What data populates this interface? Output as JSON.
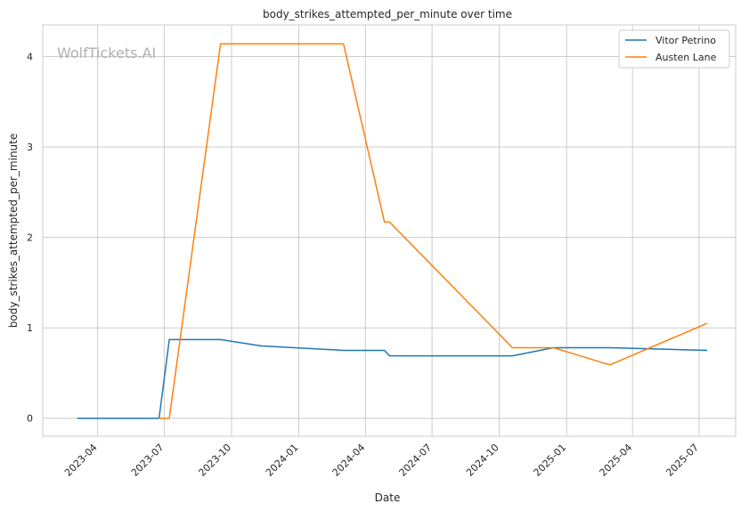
{
  "chart_data": {
    "type": "line",
    "title": "body_strikes_attempted_per_minute over time",
    "xlabel": "Date",
    "ylabel": "body_strikes_attempted_per_minute",
    "watermark": "WolfTickets.AI",
    "xlim": [
      "2023-01-16",
      "2025-08-20"
    ],
    "ylim": [
      -0.2,
      4.35
    ],
    "x_ticks": [
      "2023-04",
      "2023-07",
      "2023-10",
      "2024-01",
      "2024-04",
      "2024-07",
      "2024-10",
      "2025-01",
      "2025-04",
      "2025-07"
    ],
    "y_ticks": [
      0,
      1,
      2,
      3,
      4
    ],
    "grid": true,
    "legend_position": "top-right",
    "series": [
      {
        "name": "Vitor Petrino",
        "color": "#1f77b4",
        "points": [
          {
            "x": "2023-03-04",
            "y": 0.0
          },
          {
            "x": "2023-06-24",
            "y": 0.0
          },
          {
            "x": "2023-07-08",
            "y": 0.87
          },
          {
            "x": "2023-09-16",
            "y": 0.87
          },
          {
            "x": "2023-11-11",
            "y": 0.8
          },
          {
            "x": "2024-03-02",
            "y": 0.75
          },
          {
            "x": "2024-04-27",
            "y": 0.75
          },
          {
            "x": "2024-05-04",
            "y": 0.69
          },
          {
            "x": "2024-10-19",
            "y": 0.69
          },
          {
            "x": "2024-12-14",
            "y": 0.78
          },
          {
            "x": "2025-03-01",
            "y": 0.78
          },
          {
            "x": "2025-07-12",
            "y": 0.75
          }
        ]
      },
      {
        "name": "Austen Lane",
        "color": "#ff7f0e",
        "points": [
          {
            "x": "2023-06-24",
            "y": 0.0
          },
          {
            "x": "2023-07-08",
            "y": 0.0
          },
          {
            "x": "2023-09-16",
            "y": 4.14
          },
          {
            "x": "2024-03-02",
            "y": 4.14
          },
          {
            "x": "2024-04-27",
            "y": 2.17
          },
          {
            "x": "2024-05-04",
            "y": 2.17
          },
          {
            "x": "2024-10-19",
            "y": 0.78
          },
          {
            "x": "2024-12-14",
            "y": 0.78
          },
          {
            "x": "2025-03-01",
            "y": 0.59
          },
          {
            "x": "2025-07-12",
            "y": 1.05
          }
        ]
      }
    ]
  }
}
